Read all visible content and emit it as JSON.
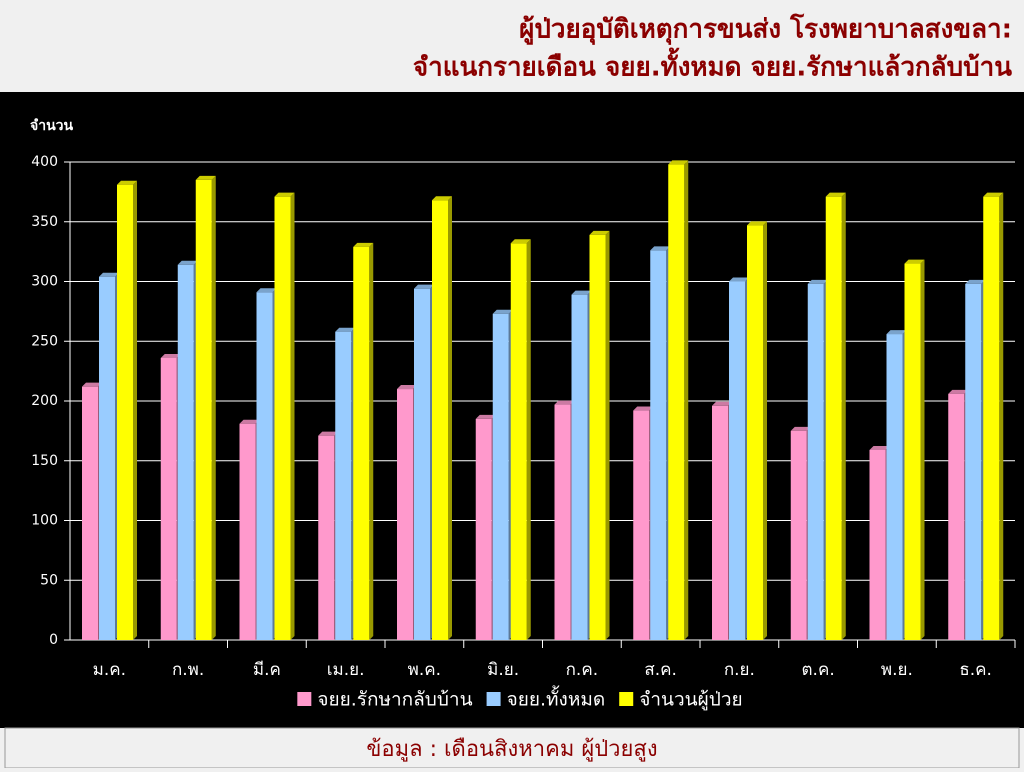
{
  "chart_data": {
    "type": "bar",
    "title": "ผู้ป่วยอุบัติเหตุการขนส่ง โรงพยาบาลสงขลา:",
    "subtitle": "จำแนกรายเดือน จยย.ทั้งหมด จยย.รักษาแล้วกลับบ้าน",
    "y_label": "จำนวน",
    "categories": [
      "ม.ค.",
      "ก.พ.",
      "มี.ค",
      "เม.ย.",
      "พ.ค.",
      "มิ.ย.",
      "ก.ค.",
      "ส.ค.",
      "ก.ย.",
      "ต.ค.",
      "พ.ย.",
      "ธ.ค."
    ],
    "series": [
      {
        "name": "จยย.รักษากลับบ้าน",
        "color": "#ff99cc",
        "values": [
          212,
          236,
          181,
          171,
          210,
          185,
          197,
          192,
          196,
          175,
          159,
          206
        ]
      },
      {
        "name": "จยย.ทั้งหมด",
        "color": "#99ccff",
        "values": [
          304,
          314,
          291,
          258,
          294,
          273,
          289,
          326,
          300,
          298,
          256,
          298
        ]
      },
      {
        "name": "จำนวนผู้ป่วย",
        "color": "#ffff00",
        "values": [
          381,
          385,
          371,
          329,
          368,
          332,
          339,
          398,
          347,
          371,
          315,
          371
        ]
      }
    ],
    "ylim": [
      0,
      400
    ],
    "yticks": [
      0,
      50,
      100,
      150,
      200,
      250,
      300,
      350,
      400
    ],
    "grid": true,
    "legend": "bottom"
  },
  "footer": "ข้อมูล : เดือนสิงหาคม ผู้ป่วยสูง"
}
